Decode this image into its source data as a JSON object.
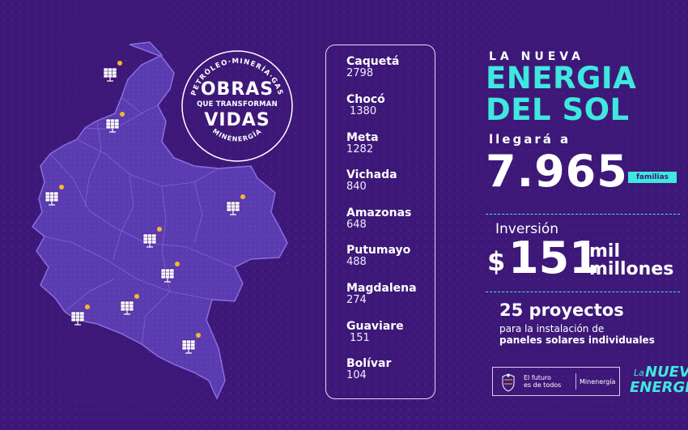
{
  "badge": {
    "ring_text": "PETRÓLEO·MINERÍA·GAS",
    "ring_bottom": "MINENERGÍA",
    "line1": "OBRAS",
    "line2": "QUE TRANSFORMAN",
    "line3": "VIDAS"
  },
  "departments": [
    {
      "name": "Caquetá",
      "value": "2798"
    },
    {
      "name": "Chocó",
      "value": "1380"
    },
    {
      "name": "Meta",
      "value": "1282"
    },
    {
      "name": "Vichada",
      "value": "840"
    },
    {
      "name": "Amazonas",
      "value": "648"
    },
    {
      "name": "Putumayo",
      "value": "488"
    },
    {
      "name": "Magdalena",
      "value": "274"
    },
    {
      "name": "Guaviare",
      "value": "151"
    },
    {
      "name": "Bolívar",
      "value": "104"
    }
  ],
  "headline": {
    "kicker": "LA NUEVA",
    "line1": "ENERGIA",
    "line2": "DEL SOL",
    "arrives": "llegará a",
    "families_count": "7.965",
    "families_label": "familias"
  },
  "investment": {
    "label": "Inversión",
    "currency": "$",
    "amount": "151",
    "unit1": "mil",
    "unit2": "millones"
  },
  "projects": {
    "title": "25 proyectos",
    "line1": "para la instalación de",
    "line2": "paneles solares individuales"
  },
  "footer": {
    "slogan_line1": "El futuro",
    "slogan_line2": "es de todos",
    "ministry": "Minenergía",
    "brand_la": "La",
    "brand_nueva": "NUEVA",
    "brand_energia": "ENERGIA"
  },
  "colors": {
    "background": "#3d1878",
    "accent": "#3fe8de",
    "map_fill": "#5a3bb0",
    "marker_star": "#f5b731"
  },
  "icons": {
    "map_marker": "solar-panel-icon"
  }
}
